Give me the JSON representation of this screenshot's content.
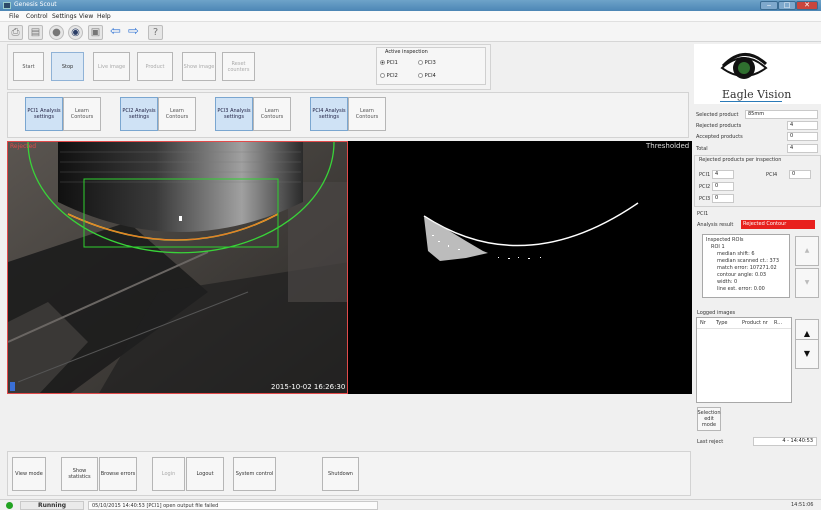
{
  "window": {
    "title": "Genesis Scout"
  },
  "menu": [
    "File",
    "Control",
    "Settings",
    "View",
    "Help"
  ],
  "toolbar": {
    "help_label": "?"
  },
  "control_buttons": {
    "start": "Start",
    "stop": "Stop",
    "live_image": "Live image",
    "product": "Product",
    "show_image": "Show image",
    "reset_counters": "Reset counters"
  },
  "active_inspection": {
    "title": "Active inspection",
    "options": [
      "PCI1",
      "PCI3",
      "PCI2",
      "PCI4"
    ],
    "selected": "PCI1"
  },
  "pci_buttons": [
    {
      "analysis": "PCI1 Analysis settings",
      "learn": "Learn Contours"
    },
    {
      "analysis": "PCI2 Analysis settings",
      "learn": "Learn Contours"
    },
    {
      "analysis": "PCI3 Analysis settings",
      "learn": "Learn Contours"
    },
    {
      "analysis": "PCI4 Analysis settings",
      "learn": "Learn Contours"
    }
  ],
  "views": {
    "left_label": "Rejected",
    "timestamp": "2015-10-02 16:26:30",
    "right_label": "Thresholded"
  },
  "logo": {
    "text": "Eagle Vision"
  },
  "stats": {
    "selected_product_label": "Selected product",
    "selected_product": "85mm",
    "rejected_label": "Rejected products",
    "rejected": "4",
    "accepted_label": "Accepted products",
    "accepted": "0",
    "total_label": "Total",
    "total": "4",
    "per_inspection_title": "Rejected products per inspection",
    "pci1_label": "PCI1",
    "pci1": "4",
    "pci2_label": "PCI2",
    "pci2": "0",
    "pci3_label": "PCI3",
    "pci3": "0",
    "pci4_label": "PCI4",
    "pci4": "0"
  },
  "analysis": {
    "section": "PCI1",
    "result_label": "Analysis result",
    "result": "Rejected Contour",
    "result_color": "#e8201e",
    "tree": [
      "Inspected ROIs",
      "ROI 1",
      "median shift: 6",
      "median scanned ct.: 373",
      "match error: 107271.02",
      "contour angle: 0.03",
      "width: 0",
      "line est. error: 0.00"
    ]
  },
  "logged_images": {
    "title": "Logged images",
    "columns": [
      "Nr",
      "Type",
      "Product nr",
      "R..."
    ]
  },
  "selection_edit": "Selection edit mode",
  "last_reject": {
    "label": "Last reject",
    "value": "4 - 14:40:53"
  },
  "bottom_buttons": {
    "view_mode": "View mode",
    "show_statistics": "Show statistics",
    "browse_errors": "Browse errors",
    "login": "Login",
    "logout": "Logout",
    "system_control": "System control",
    "shutdown": "Shutdown"
  },
  "status": {
    "state": "Running",
    "message": "05/10/2015 14:40:53 [PCI1] open output file failed",
    "clock": "14:51:06"
  }
}
